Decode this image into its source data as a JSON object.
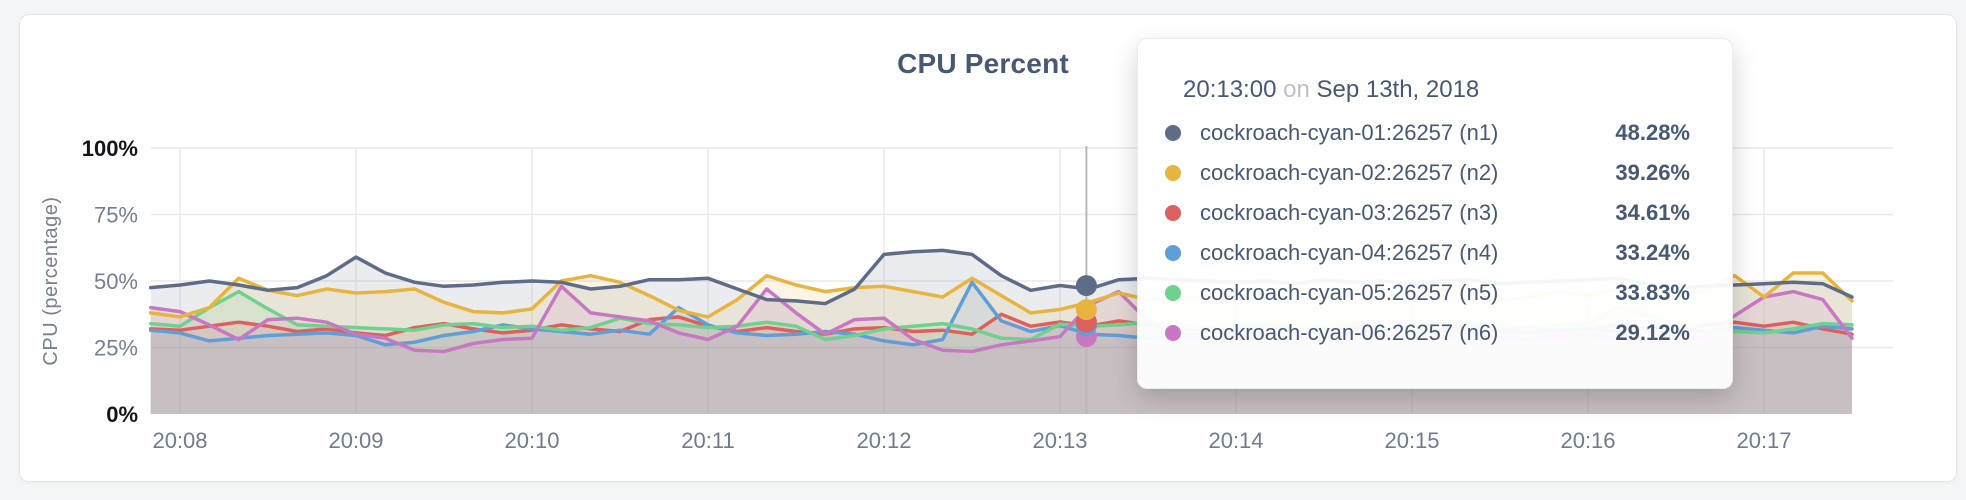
{
  "page": {
    "background": "#f4f5f6"
  },
  "card": {
    "background": "#ffffff",
    "border_color": "#e3e5e8"
  },
  "title": "CPU Percent",
  "y_axis": {
    "label": "CPU (percentage)",
    "ticks": [
      {
        "label": "100%",
        "value": 100,
        "strong": true
      },
      {
        "label": "75%",
        "value": 75,
        "strong": false
      },
      {
        "label": "50%",
        "value": 50,
        "strong": false
      },
      {
        "label": "25%",
        "value": 25,
        "strong": false
      },
      {
        "label": "0%",
        "value": 0,
        "strong": true
      }
    ]
  },
  "x_axis": {
    "ticks": [
      "20:08",
      "20:09",
      "20:10",
      "20:11",
      "20:12",
      "20:13",
      "20:14",
      "20:15",
      "20:16",
      "20:17"
    ]
  },
  "tooltip": {
    "time": "20:13:00",
    "conjunction": "on",
    "date": "Sep 13th, 2018",
    "rows": [
      {
        "label": "cockroach-cyan-01:26257 (n1)",
        "value": "48.28%",
        "value_num": 48.28,
        "color": "#5f6c87"
      },
      {
        "label": "cockroach-cyan-02:26257 (n2)",
        "value": "39.26%",
        "value_num": 39.26,
        "color": "#e7b440"
      },
      {
        "label": "cockroach-cyan-03:26257 (n3)",
        "value": "34.61%",
        "value_num": 34.61,
        "color": "#de605d"
      },
      {
        "label": "cockroach-cyan-04:26257 (n4)",
        "value": "33.24%",
        "value_num": 33.24,
        "color": "#5f9ed8"
      },
      {
        "label": "cockroach-cyan-05:26257 (n5)",
        "value": "33.83%",
        "value_num": 33.83,
        "color": "#70d08d"
      },
      {
        "label": "cockroach-cyan-06:26257 (n6)",
        "value": "29.12%",
        "value_num": 29.12,
        "color": "#c878c2"
      }
    ]
  },
  "chart_data": {
    "type": "line",
    "title": "CPU Percent",
    "xlabel": "",
    "ylabel": "CPU (percentage)",
    "ylim": [
      0,
      100
    ],
    "grid": true,
    "area_fill_opacity": 0.13,
    "x_start": "20:07:50",
    "x_end": "20:17:30",
    "interval_seconds": 10,
    "x_ticks": [
      "20:08",
      "20:09",
      "20:10",
      "20:11",
      "20:12",
      "20:13",
      "20:14",
      "20:15",
      "20:16",
      "20:17"
    ],
    "crosshair": {
      "time": "20:13:00",
      "date": "Sep 13th, 2018",
      "position_minutes_after_first_tick": 5.15
    },
    "series": [
      {
        "name": "cockroach-cyan-01:26257 (n1)",
        "color": "#5f6c87",
        "values": [
          47.5,
          48.5,
          50,
          48.5,
          46.5,
          47.5,
          52,
          59,
          53,
          49.5,
          48,
          48.5,
          49.5,
          50,
          49.5,
          47,
          48,
          50.5,
          50.5,
          51,
          47,
          43,
          42.5,
          41.5,
          47,
          60,
          61,
          61.5,
          60,
          52,
          46.5,
          48.3,
          47,
          50.5,
          51,
          50.5,
          50,
          49.5,
          50,
          49,
          50.5,
          49.5,
          50,
          49,
          50,
          50.5,
          49,
          49.5,
          50,
          50.5,
          51,
          49,
          47.5,
          48,
          48.5,
          49,
          49.5,
          49,
          44
        ]
      },
      {
        "name": "cockroach-cyan-02:26257 (n2)",
        "color": "#e7b440",
        "values": [
          38,
          36.5,
          40,
          51,
          46.5,
          44.5,
          47,
          45.5,
          46,
          47,
          42,
          38.5,
          38,
          39.5,
          50,
          52,
          49.5,
          44.5,
          39,
          36.5,
          43,
          52,
          48.5,
          46,
          47.5,
          48,
          46,
          44,
          51,
          44.5,
          38,
          39.3,
          42,
          45.5,
          43,
          43.5,
          44,
          43,
          46,
          48,
          44,
          42,
          43.5,
          45,
          47,
          44,
          42.5,
          44,
          46,
          44.5,
          47,
          49,
          44,
          46.5,
          52,
          44,
          53,
          53,
          42.5
        ]
      },
      {
        "name": "cockroach-cyan-03:26257 (n3)",
        "color": "#de605d",
        "values": [
          32,
          31.5,
          33,
          34.5,
          33,
          31,
          32,
          30.5,
          29.5,
          32.5,
          34,
          32,
          30.5,
          31.5,
          33.5,
          32,
          31,
          35.5,
          36.5,
          33,
          31,
          32.5,
          31,
          30,
          32,
          32.5,
          31,
          31.5,
          30,
          37.5,
          33,
          34.6,
          33,
          35,
          33.5,
          32,
          31.5,
          32,
          33.5,
          32,
          31,
          32.5,
          33,
          31.5,
          32,
          33,
          31.5,
          32.5,
          31,
          32,
          33.5,
          32,
          31,
          33.5,
          34.5,
          33,
          34.5,
          32,
          30
        ]
      },
      {
        "name": "cockroach-cyan-04:26257 (n4)",
        "color": "#5f9ed8",
        "values": [
          31.5,
          30.5,
          27.5,
          28.5,
          29.5,
          30,
          30.5,
          29.5,
          26,
          27,
          29.5,
          31,
          33.5,
          32,
          31,
          30,
          31.5,
          30,
          40,
          33.5,
          30.5,
          29.5,
          30,
          31,
          30,
          27.5,
          26,
          28,
          49.5,
          35,
          31,
          33.2,
          30,
          29.5,
          28.5,
          29,
          30.5,
          31,
          30,
          31.5,
          30.5,
          31,
          32,
          30.5,
          31,
          32,
          31,
          30.5,
          31.5,
          32,
          31,
          32.5,
          31.5,
          31,
          32.5,
          31.5,
          30.5,
          33,
          32
        ]
      },
      {
        "name": "cockroach-cyan-05:26257 (n5)",
        "color": "#70d08d",
        "values": [
          34,
          33,
          40,
          46,
          39.5,
          33.5,
          33,
          32.5,
          32,
          31.5,
          33.5,
          34,
          32.5,
          33,
          31.5,
          32.5,
          36,
          34,
          33.5,
          32.5,
          33,
          34.5,
          33,
          28,
          29.5,
          32,
          33,
          34,
          32,
          28.5,
          28,
          33.8,
          33,
          33.5,
          34.5,
          33,
          32.5,
          33,
          34,
          33,
          32.5,
          34,
          33.5,
          32.5,
          33,
          34.5,
          33,
          32,
          33.5,
          34,
          40,
          37,
          34,
          32,
          31,
          30.5,
          32,
          34,
          33.5
        ]
      },
      {
        "name": "cockroach-cyan-06:26257 (n6)",
        "color": "#c878c2",
        "values": [
          40,
          38.5,
          33.5,
          28,
          35.5,
          36,
          34.5,
          30,
          28.5,
          24,
          23.5,
          26.5,
          28,
          28.5,
          48,
          38,
          36.5,
          35,
          30.5,
          28,
          33,
          47,
          38,
          30,
          35.5,
          36,
          28,
          24,
          23.5,
          26,
          27.5,
          29.1,
          41,
          46,
          35,
          30,
          29,
          28.5,
          30,
          29,
          28,
          29.5,
          30,
          28.5,
          29,
          30.5,
          29,
          28,
          29.5,
          30,
          28.5,
          27,
          28,
          29,
          37,
          44,
          46,
          43,
          28.5
        ]
      }
    ]
  }
}
